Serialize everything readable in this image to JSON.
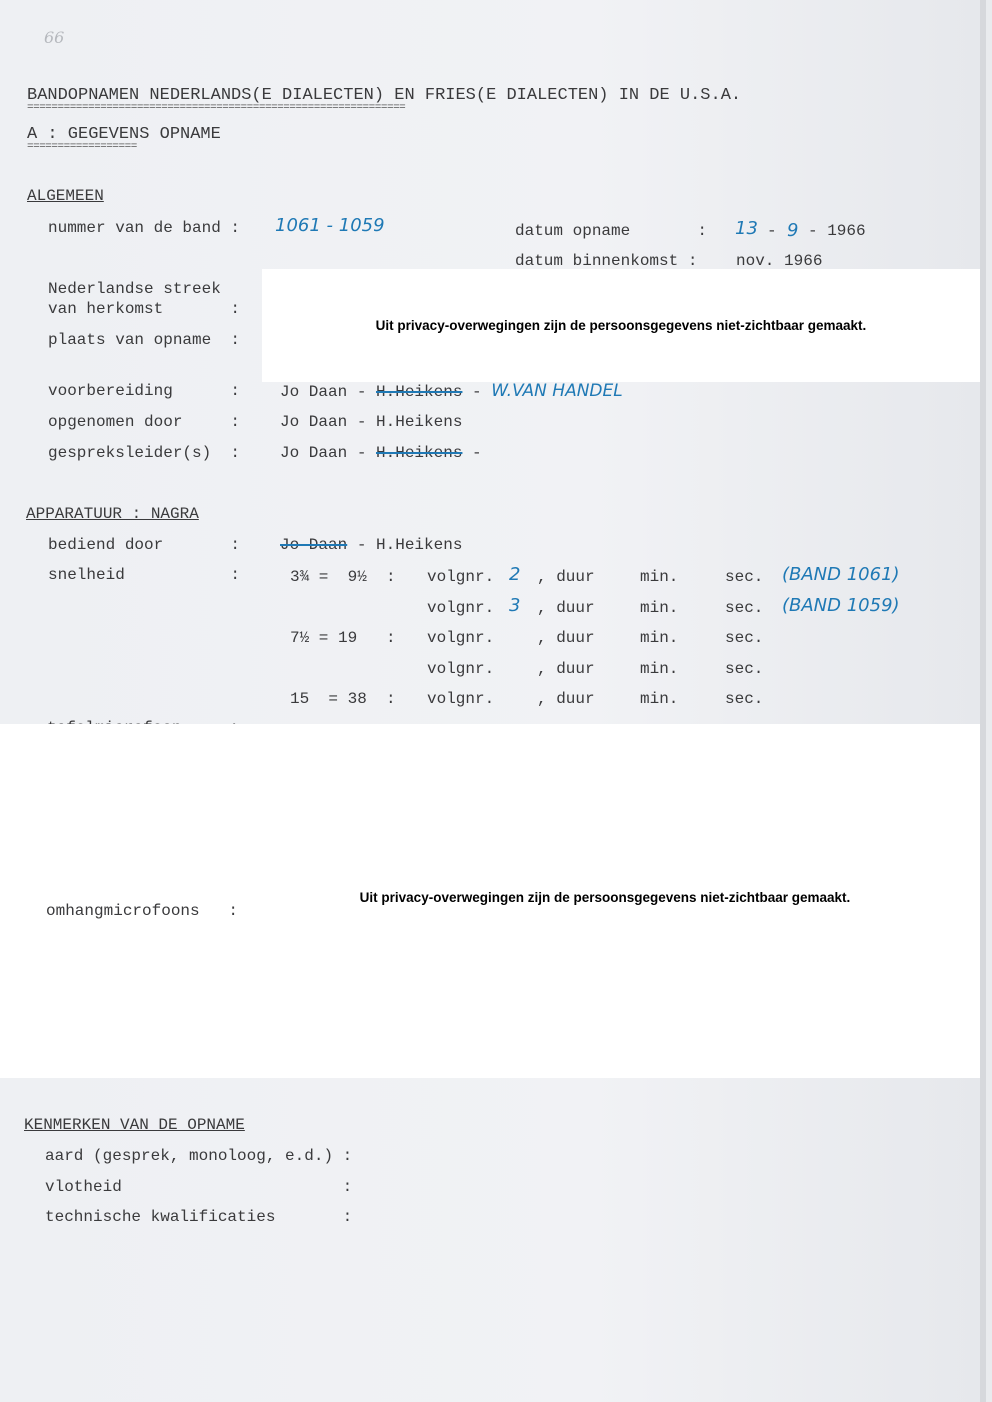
{
  "page_number": "66",
  "title": "BANDOPNAMEN NEDERLANDS(E DIALECTEN) EN FRIES(E DIALECTEN) IN DE U.S.A.",
  "title_rule": "==============================================================",
  "section_a": "A : GEGEVENS OPNAME",
  "section_a_rule": "==================",
  "algemeen": {
    "heading": "ALGEMEEN",
    "band_label": "nummer van de band :",
    "band_value": "1061 - 1059",
    "datum_opname_label": "datum opname       :",
    "datum_opname_day": "13",
    "datum_opname_month": "9",
    "datum_opname_year": "- 1966",
    "datum_binnenkomst_label": "datum binnenkomst :",
    "datum_binnenkomst_value": "nov. 1966",
    "streek_label_1": "Nederlandse streek",
    "streek_label_2": "van herkomst       :",
    "plaats_label": "plaats van opname  :",
    "voorbereiding_label": "voorbereiding      :",
    "voorbereiding_value": "Jo Daan - ",
    "voorbereiding_struck": "H.Heikens",
    "voorbereiding_sep": " - ",
    "voorbereiding_hw": "W.VAN HANDEL",
    "opgenomen_label": "opgenomen door     :",
    "opgenomen_value": "Jo Daan - H.Heikens",
    "gespreksleider_label": "gespreksleider(s)  :",
    "gespreksleider_value": "Jo Daan - ",
    "gespreksleider_struck": "H.Heikens",
    "gespreksleider_sep": " -"
  },
  "privacy_notice": "Uit privacy-overwegingen zijn de persoonsgegevens  niet-zichtbaar gemaakt.",
  "apparatuur": {
    "heading": "APPARATUUR : NAGRA",
    "bediend_label": "bediend door       :",
    "bediend_struck": "Jo Daan",
    "bediend_value": " - H.Heikens",
    "snelheid_label": "snelheid           :",
    "rows": [
      {
        "speed": "3¾ =  9½  :",
        "volgnr": "volgnr.",
        "hw_num": "2",
        "duur": ", duur",
        "min": "min.",
        "sec": "sec.",
        "note": "(BAND 1061)"
      },
      {
        "speed": "",
        "volgnr": "volgnr.",
        "hw_num": "3",
        "duur": ", duur",
        "min": "min.",
        "sec": "sec.",
        "note": "(BAND 1059)"
      },
      {
        "speed": "7½ = 19   :",
        "volgnr": "volgnr.",
        "hw_num": "",
        "duur": ", duur",
        "min": "min.",
        "sec": "sec.",
        "note": ""
      },
      {
        "speed": "",
        "volgnr": "volgnr.",
        "hw_num": "",
        "duur": ", duur",
        "min": "min.",
        "sec": "sec.",
        "note": ""
      },
      {
        "speed": "15  = 38  :",
        "volgnr": "volgnr.",
        "hw_num": "",
        "duur": ", duur",
        "min": "min.",
        "sec": "sec.",
        "note": ""
      }
    ],
    "tafel_label": "tafelmicrofoon     :",
    "omhang_label": "omhangmicrofoons   :"
  },
  "kenmerken": {
    "heading": "KENMERKEN VAN DE OPNAME",
    "aard_label": "aard (gesprek, monoloog, e.d.) :",
    "vlotheid_label": "vlotheid                       :",
    "technisch_label": "technische kwalificaties       :"
  }
}
